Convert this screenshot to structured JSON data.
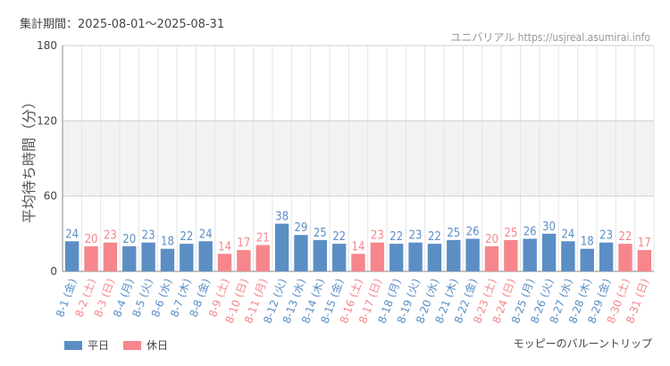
{
  "header": {
    "period": "集計期間：2025-08-01～2025-08-31",
    "credit": "ユニバリアル https://usjreal.asumirai.info"
  },
  "footer": {
    "attraction": "モッピーのバルーントリップ",
    "legend": [
      {
        "label": "平日",
        "color": "#5b8ec4"
      },
      {
        "label": "休日",
        "color": "#f6868c"
      }
    ]
  },
  "colors": {
    "weekday": "#5b8ec4",
    "holiday": "#f6868c",
    "band": "#f2f2f2",
    "grid": "#e4e4e4"
  },
  "chart_data": {
    "type": "bar",
    "ylabel": "平均待ち時間（分）",
    "ylim": [
      0,
      180
    ],
    "yticks": [
      0,
      60,
      120,
      180
    ],
    "grid": true,
    "categories": [
      "8-1 (金)",
      "8-2 (土)",
      "8-3 (日)",
      "8-4 (月)",
      "8-5 (火)",
      "8-6 (水)",
      "8-7 (木)",
      "8-8 (金)",
      "8-9 (土)",
      "8-10 (日)",
      "8-11 (月)",
      "8-12 (火)",
      "8-13 (水)",
      "8-14 (木)",
      "8-15 (金)",
      "8-16 (土)",
      "8-17 (日)",
      "8-18 (月)",
      "8-19 (火)",
      "8-20 (水)",
      "8-21 (木)",
      "8-22 (金)",
      "8-23 (土)",
      "8-24 (日)",
      "8-25 (月)",
      "8-26 (火)",
      "8-27 (水)",
      "8-28 (木)",
      "8-29 (金)",
      "8-30 (土)",
      "8-31 (日)"
    ],
    "values": [
      24,
      20,
      23,
      20,
      23,
      18,
      22,
      24,
      14,
      17,
      21,
      38,
      29,
      25,
      22,
      14,
      23,
      22,
      23,
      22,
      25,
      26,
      20,
      25,
      26,
      30,
      24,
      18,
      23,
      22,
      17
    ],
    "day_type": [
      "平日",
      "休日",
      "休日",
      "平日",
      "平日",
      "平日",
      "平日",
      "平日",
      "休日",
      "休日",
      "休日",
      "平日",
      "平日",
      "平日",
      "平日",
      "休日",
      "休日",
      "平日",
      "平日",
      "平日",
      "平日",
      "平日",
      "休日",
      "休日",
      "平日",
      "平日",
      "平日",
      "平日",
      "平日",
      "休日",
      "休日"
    ],
    "legend": [
      "平日",
      "休日"
    ]
  }
}
